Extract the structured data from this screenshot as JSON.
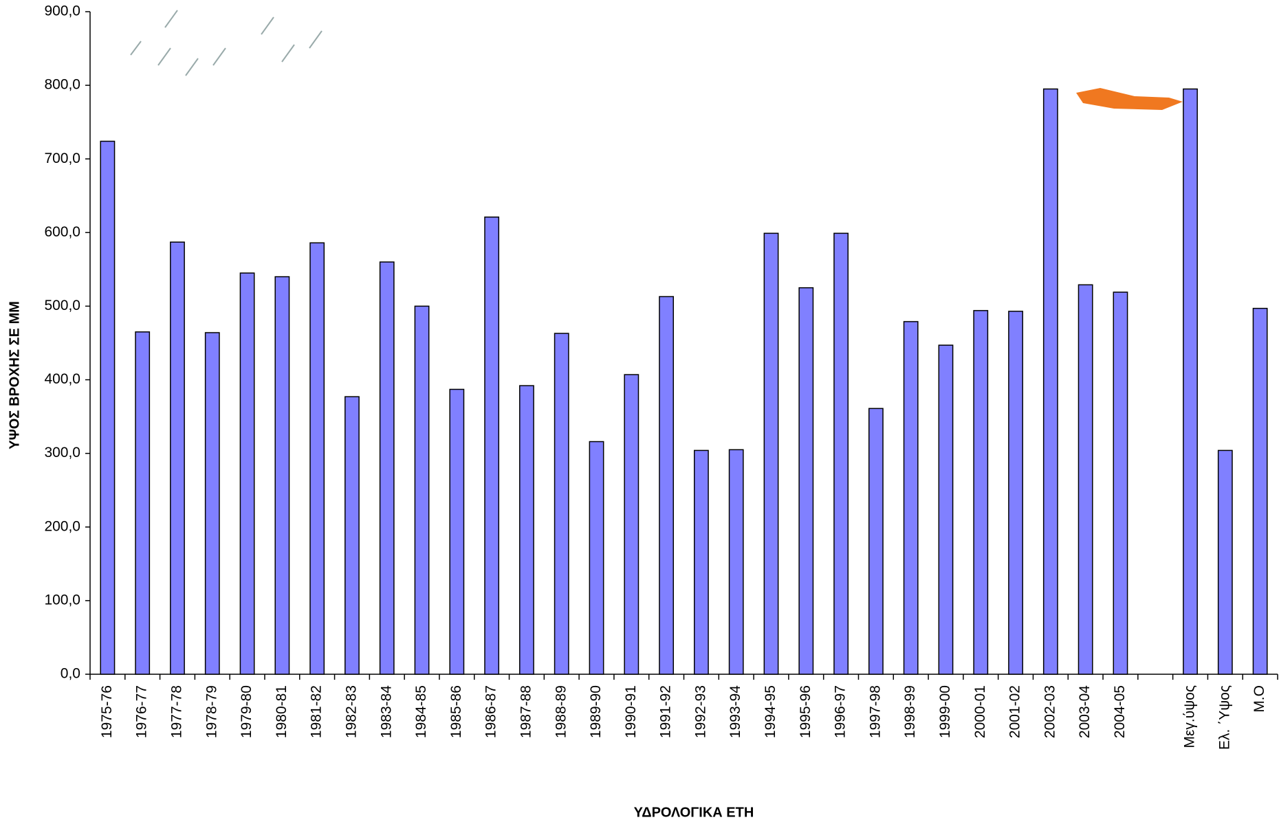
{
  "chart_data": {
    "type": "bar",
    "x_label": "ΥΔΡΟΛΟΓΙΚΑ ΕΤΗ",
    "y_label": "ΥΨΟΣ ΒΡΟΧΗΣ ΣΕ ΜΜ",
    "categories": [
      "1975-76",
      "1976-77",
      "1977-78",
      "1978-79",
      "1979-80",
      "1980-81",
      "1981-82",
      "1982-83",
      "1983-84",
      "1984-85",
      "1985-86",
      "1986-87",
      "1987-88",
      "1988-89",
      "1989-90",
      "1990-91",
      "1991-92",
      "1992-93",
      "1993-94",
      "1994-95",
      "1995-96",
      "1996-97",
      "1997-98",
      "1998-99",
      "1999-00",
      "2000-01",
      "2001-02",
      "2002-03",
      "2003-04",
      "2004-05",
      null,
      "Μεγ.ύψος",
      "Ελ. ΄Υψος",
      "Μ.Ο"
    ],
    "values": [
      724,
      465,
      587,
      464,
      545,
      540,
      586,
      377,
      560,
      500,
      387,
      621,
      392,
      463,
      316,
      407,
      513,
      304,
      305,
      599,
      525,
      599,
      361,
      479,
      447,
      494,
      493,
      795,
      529,
      519,
      null,
      795,
      304,
      497
    ],
    "color": "#8080ff",
    "ylim": [
      0,
      900
    ],
    "yticks": [
      {
        "value": 0,
        "label": "0,0"
      },
      {
        "value": 100,
        "label": "100,0"
      },
      {
        "value": 200,
        "label": "200,0"
      },
      {
        "value": 300,
        "label": "300,0"
      },
      {
        "value": 400,
        "label": "400,0"
      },
      {
        "value": 500,
        "label": "500,0"
      },
      {
        "value": 600,
        "label": "600,0"
      },
      {
        "value": 700,
        "label": "700,0"
      },
      {
        "value": 800,
        "label": "800,0"
      },
      {
        "value": 900,
        "label": "900,0"
      }
    ],
    "grid": false
  }
}
